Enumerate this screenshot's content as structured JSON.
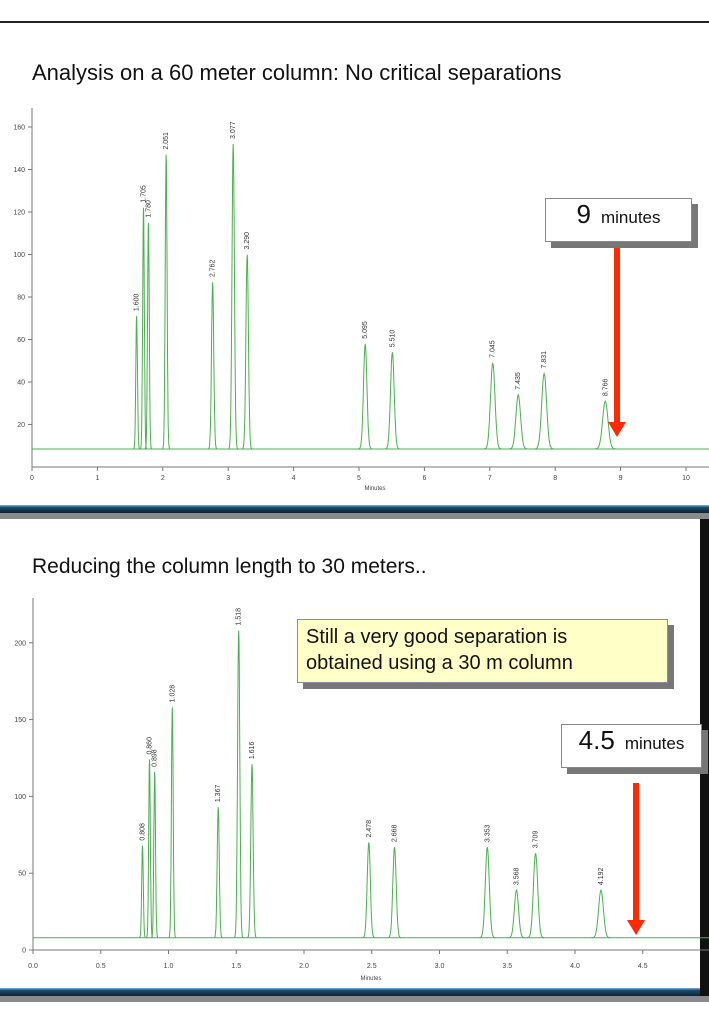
{
  "slides": [
    {
      "title": "Analysis on a 60 meter column: No critical separations",
      "callout": {
        "value": "9",
        "unit": "minutes"
      }
    },
    {
      "title": "Reducing the column length to 30 meters..",
      "note": [
        "Still a very good separation is",
        "obtained using a 30 m column"
      ],
      "callout": {
        "value": "4.5",
        "unit": "minutes"
      }
    }
  ],
  "colors": {
    "trace": "#4caf50",
    "arrow": "#ff2a00",
    "note_bg": "#ffffc8"
  },
  "chart_data": [
    {
      "type": "line",
      "xlabel": "Minutes",
      "xlim": [
        0,
        10
      ],
      "ylim": [
        0,
        165
      ],
      "xticks": [
        "0",
        "1",
        "2",
        "3",
        "4",
        "5",
        "6",
        "7",
        "8",
        "9",
        "10"
      ],
      "yticks": [
        "20",
        "40",
        "60",
        "80",
        "100",
        "120",
        "140",
        "160"
      ],
      "baseline": 8.5,
      "peaks": [
        {
          "rt": 1.6,
          "label": "1.600",
          "height": 71
        },
        {
          "rt": 1.705,
          "label": "1.705",
          "height": 122
        },
        {
          "rt": 1.78,
          "label": "1.780",
          "height": 115
        },
        {
          "rt": 2.051,
          "label": "2.051",
          "height": 147
        },
        {
          "rt": 2.762,
          "label": "2.762",
          "height": 87
        },
        {
          "rt": 3.077,
          "label": "3.077",
          "height": 152
        },
        {
          "rt": 3.29,
          "label": "3.290",
          "height": 100
        },
        {
          "rt": 5.095,
          "label": "5.095",
          "height": 58
        },
        {
          "rt": 5.51,
          "label": "5.510",
          "height": 54
        },
        {
          "rt": 7.045,
          "label": "7.045",
          "height": 49
        },
        {
          "rt": 7.435,
          "label": "7.435",
          "height": 34
        },
        {
          "rt": 7.831,
          "label": "7.831",
          "height": 44
        },
        {
          "rt": 8.766,
          "label": "8.766",
          "height": 31
        }
      ],
      "marker_minutes": 9
    },
    {
      "type": "line",
      "xlabel": "Minutes",
      "xlim": [
        0,
        5
      ],
      "ylim": [
        0,
        230
      ],
      "xticks": [
        "0.0",
        "0.5",
        "1.0",
        "1.5",
        "2.0",
        "2.5",
        "3.0",
        "3.5",
        "4.0",
        "4.5"
      ],
      "yticks": [
        "0",
        "50",
        "100",
        "150",
        "200"
      ],
      "baseline": 8,
      "peaks": [
        {
          "rt": 0.808,
          "label": "0.808",
          "height": 68
        },
        {
          "rt": 0.86,
          "label": "0.860",
          "height": 124
        },
        {
          "rt": 0.898,
          "label": "0.898",
          "height": 116
        },
        {
          "rt": 1.028,
          "label": "1.028",
          "height": 158
        },
        {
          "rt": 1.367,
          "label": "1.367",
          "height": 93
        },
        {
          "rt": 1.518,
          "label": "1.518",
          "height": 208
        },
        {
          "rt": 1.616,
          "label": "1.616",
          "height": 121
        },
        {
          "rt": 2.478,
          "label": "2.478",
          "height": 70
        },
        {
          "rt": 2.668,
          "label": "2.668",
          "height": 67
        },
        {
          "rt": 3.353,
          "label": "3.353",
          "height": 67
        },
        {
          "rt": 3.568,
          "label": "3.568",
          "height": 39
        },
        {
          "rt": 3.709,
          "label": "3.709",
          "height": 63
        },
        {
          "rt": 4.192,
          "label": "4.192",
          "height": 39
        }
      ],
      "marker_minutes": 4.5
    }
  ]
}
